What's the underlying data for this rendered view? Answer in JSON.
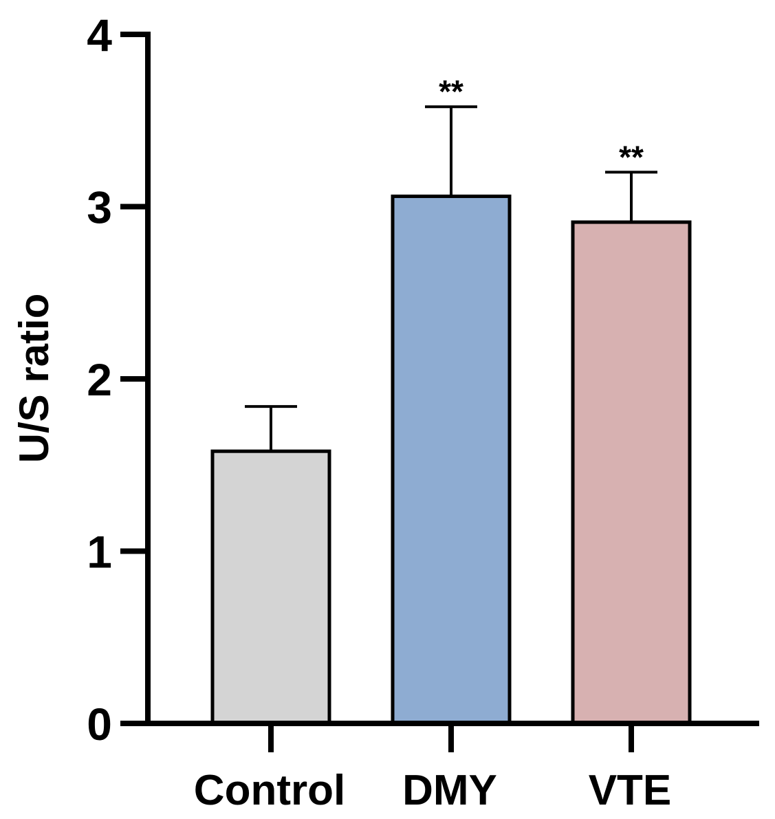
{
  "chart_data": {
    "type": "bar",
    "title": "",
    "xlabel": "",
    "ylabel": "U/S ratio",
    "ylim": [
      0,
      4
    ],
    "yticks": [
      "0",
      "1",
      "2",
      "3",
      "4"
    ],
    "categories": [
      "Control",
      "DMY",
      "VTE"
    ],
    "values": [
      1.58,
      3.06,
      2.91
    ],
    "error_upper": [
      0.26,
      0.52,
      0.29
    ],
    "significance": [
      "",
      "**",
      "**"
    ],
    "colors": [
      "#d4d4d4",
      "#8eacd2",
      "#d7b1b1"
    ],
    "grid": false
  }
}
